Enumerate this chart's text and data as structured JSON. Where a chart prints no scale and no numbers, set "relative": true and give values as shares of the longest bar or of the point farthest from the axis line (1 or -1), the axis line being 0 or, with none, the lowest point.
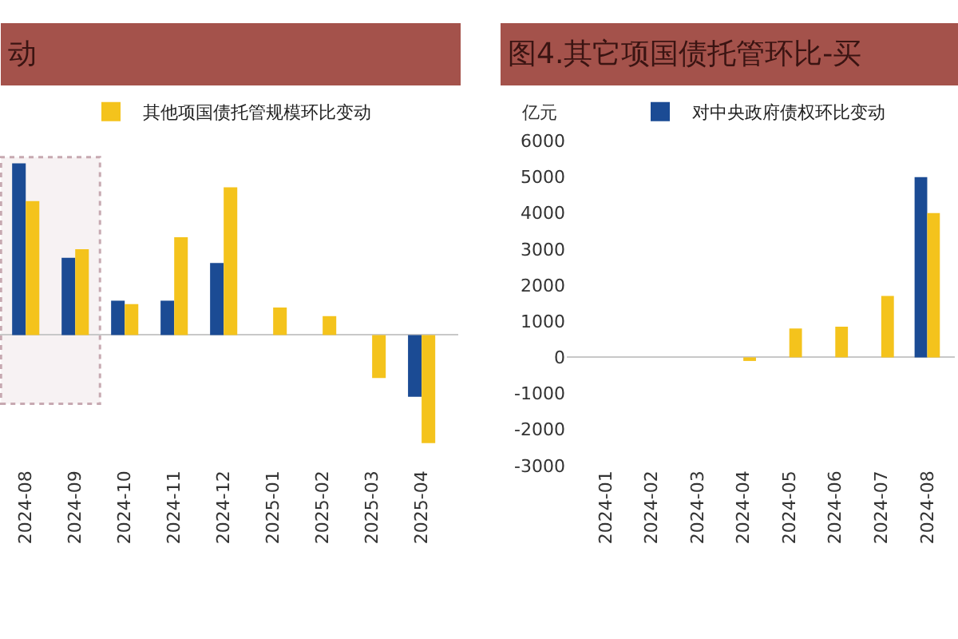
{
  "chart_data": [
    {
      "type": "bar",
      "title": "动",
      "categories": [
        "2024-08",
        "2024-09",
        "2024-10",
        "2024-11",
        "2024-12",
        "2025-01",
        "2025-02",
        "2025-03",
        "2025-04"
      ],
      "relative": true,
      "series": [
        {
          "color": "#1b4b94",
          "values": [
            1.0,
            0.45,
            0.2,
            0.2,
            0.42,
            null,
            null,
            null,
            -0.36
          ]
        },
        {
          "name": "其他项国债托管规模环比变动",
          "color": "#f4c31c",
          "values": [
            0.78,
            0.5,
            0.18,
            0.57,
            0.86,
            0.16,
            0.11,
            -0.25,
            -0.63
          ]
        }
      ],
      "legend": "top",
      "bands": [
        {
          "axis": "x",
          "from": "2024-08",
          "to": "2024-09",
          "color": "#c7a9b1"
        }
      ]
    },
    {
      "type": "bar",
      "title": "图4.其它项国债托管环比-买",
      "ylabel": "亿元",
      "categories": [
        "2024-01",
        "2024-02",
        "2024-03",
        "2024-04",
        "2024-05",
        "2024-06",
        "2024-07",
        "2024-08"
      ],
      "ylim": [
        -3000,
        6000
      ],
      "yticks": [
        -3000,
        -2000,
        -1000,
        0,
        1000,
        2000,
        3000,
        4000,
        5000,
        6000
      ],
      "series": [
        {
          "name": "对中央政府债权环比变动",
          "color": "#1b4b94",
          "values": [
            null,
            null,
            null,
            null,
            null,
            null,
            null,
            5000
          ]
        },
        {
          "color": "#f4c31c",
          "values": [
            null,
            null,
            null,
            -100,
            800,
            850,
            1700,
            4000
          ]
        }
      ],
      "legend": "top"
    }
  ]
}
